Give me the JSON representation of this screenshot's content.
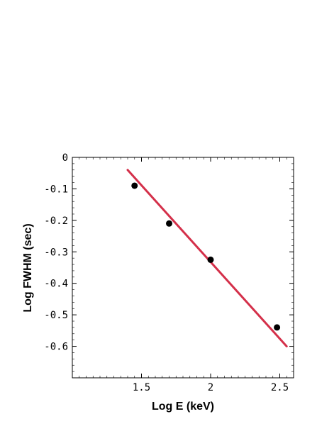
{
  "chart_data": {
    "type": "scatter",
    "xlabel": "Log E (keV)",
    "ylabel": "Log FWHM (sec)",
    "xlim": [
      1.0,
      2.6
    ],
    "ylim": [
      -0.7,
      0.0
    ],
    "x_ticks": [
      {
        "value": 1.5,
        "label": "1.5"
      },
      {
        "value": 2.0,
        "label": "2"
      },
      {
        "value": 2.5,
        "label": "2.5"
      }
    ],
    "y_ticks": [
      {
        "value": 0.0,
        "label": "0"
      },
      {
        "value": -0.1,
        "label": "-0.1"
      },
      {
        "value": -0.2,
        "label": "-0.2"
      },
      {
        "value": -0.3,
        "label": "-0.3"
      },
      {
        "value": -0.4,
        "label": "-0.4"
      },
      {
        "value": -0.5,
        "label": "-0.5"
      },
      {
        "value": -0.6,
        "label": "-0.6"
      }
    ],
    "grid": false,
    "series": [
      {
        "kind": "points",
        "color": "#000000",
        "points": [
          {
            "x": 1.45,
            "y": -0.09
          },
          {
            "x": 1.7,
            "y": -0.21
          },
          {
            "x": 2.0,
            "y": -0.325
          },
          {
            "x": 2.48,
            "y": -0.54
          }
        ]
      },
      {
        "kind": "fit-line",
        "color": "#d4304a",
        "points": [
          {
            "x": 1.4,
            "y": -0.04
          },
          {
            "x": 2.55,
            "y": -0.6
          }
        ]
      }
    ]
  }
}
